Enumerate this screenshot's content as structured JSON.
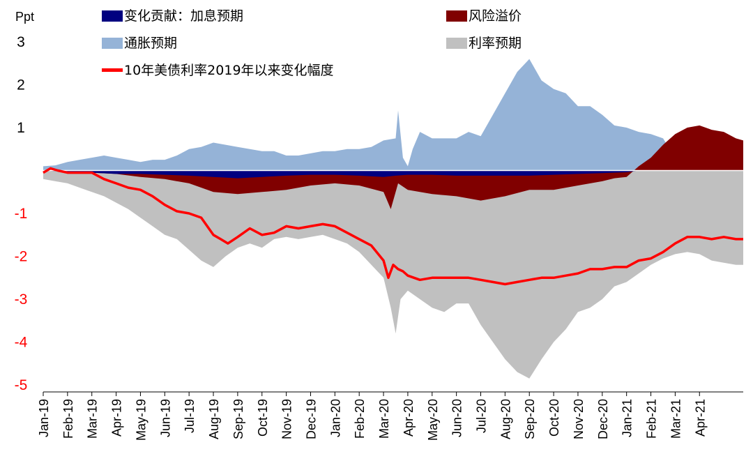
{
  "chart_data": {
    "type": "area",
    "unit_label": "Ppt",
    "ylim": [
      -5,
      3
    ],
    "y_ticks": [
      {
        "value": 3,
        "label": "3",
        "color": "#000000"
      },
      {
        "value": 2,
        "label": "2",
        "color": "#000000"
      },
      {
        "value": 1,
        "label": "1",
        "color": "#000000"
      },
      {
        "value": -1,
        "label": "-1",
        "color": "#ff0000"
      },
      {
        "value": -2,
        "label": "-2",
        "color": "#ff0000"
      },
      {
        "value": -3,
        "label": "-3",
        "color": "#ff0000"
      },
      {
        "value": -4,
        "label": "-4",
        "color": "#ff0000"
      },
      {
        "value": -5,
        "label": "-5",
        "color": "#ff0000"
      }
    ],
    "categories": [
      "Jan-19",
      "Feb-19",
      "Mar-19",
      "Apr-19",
      "May-19",
      "Jun-19",
      "Jul-19",
      "Aug-19",
      "Sep-19",
      "Oct-19",
      "Nov-19",
      "Dec-19",
      "Jan-20",
      "Feb-20",
      "Mar-20",
      "Apr-20",
      "May-20",
      "Jun-20",
      "Jul-20",
      "Aug-20",
      "Sep-20",
      "Oct-20",
      "Nov-20",
      "Dec-20",
      "Jan-21",
      "Feb-21",
      "Mar-21",
      "Apr-21"
    ],
    "x_end": 28.8,
    "legend": [
      {
        "key": "tp",
        "label": "变化贡献：加息预期",
        "color": "#000080",
        "marker": "box"
      },
      {
        "key": "rp",
        "label": "风险溢价",
        "color": "#800000",
        "marker": "box"
      },
      {
        "key": "inf",
        "label": "通胀预期",
        "color": "#95b3d7",
        "marker": "box"
      },
      {
        "key": "rate",
        "label": "利率预期",
        "color": "#c0c0c0",
        "marker": "box"
      },
      {
        "key": "yield",
        "label": "10年美债利率2019年以来变化幅度",
        "color": "#ff0000",
        "marker": "line"
      }
    ],
    "series": [
      {
        "key": "inf",
        "type": "area",
        "color": "#95b3d7",
        "x": [
          0,
          0.5,
          1,
          1.5,
          2,
          2.5,
          3,
          3.5,
          4,
          4.5,
          5,
          5.5,
          6,
          6.5,
          7,
          7.5,
          8,
          8.5,
          9,
          9.5,
          10,
          10.5,
          11,
          11.5,
          12,
          12.5,
          13,
          13.5,
          14,
          14.5,
          14.6,
          14.8,
          15,
          15.2,
          15.5,
          16,
          16.5,
          17,
          17.5,
          18,
          18.5,
          19,
          19.5,
          20,
          20.5,
          21,
          21.5,
          22,
          22.5,
          23,
          23.5,
          24,
          24.5,
          25,
          25.5,
          26,
          26.5,
          27,
          27.5,
          28,
          28.5,
          28.8
        ],
        "y": [
          0.1,
          0.12,
          0.2,
          0.25,
          0.3,
          0.35,
          0.3,
          0.25,
          0.2,
          0.25,
          0.25,
          0.35,
          0.5,
          0.55,
          0.65,
          0.6,
          0.55,
          0.5,
          0.45,
          0.45,
          0.35,
          0.35,
          0.4,
          0.45,
          0.45,
          0.5,
          0.5,
          0.55,
          0.7,
          0.75,
          1.4,
          0.3,
          0.1,
          0.5,
          0.9,
          0.75,
          0.75,
          0.75,
          0.9,
          0.8,
          1.3,
          1.8,
          2.3,
          2.6,
          2.1,
          1.9,
          1.8,
          1.5,
          1.5,
          1.3,
          1.05,
          1,
          0.9,
          0.85,
          0.75,
          0.3,
          0.05,
          0,
          0,
          0,
          0,
          0
        ]
      },
      {
        "key": "tp",
        "type": "area",
        "color": "#000080",
        "x": [
          0,
          1,
          2,
          3,
          4,
          5,
          6,
          7,
          8,
          9,
          10,
          11,
          12,
          13,
          14,
          14.5,
          15,
          16,
          17,
          18,
          19,
          20,
          21,
          22,
          23,
          24,
          24.5,
          25,
          26,
          27,
          28,
          28.8
        ],
        "y": [
          0,
          -0.03,
          -0.05,
          -0.08,
          -0.08,
          -0.1,
          -0.12,
          -0.15,
          -0.18,
          -0.15,
          -0.12,
          -0.1,
          -0.1,
          -0.12,
          -0.15,
          -0.12,
          -0.1,
          -0.1,
          -0.12,
          -0.12,
          -0.12,
          -0.12,
          -0.1,
          -0.08,
          -0.06,
          -0.04,
          0,
          0,
          0,
          0,
          0,
          0
        ]
      },
      {
        "key": "rp",
        "type": "area",
        "color": "#800000",
        "x": [
          0,
          1,
          2,
          3,
          4,
          5,
          6,
          7,
          8,
          9,
          10,
          11,
          12,
          13,
          14,
          14.3,
          14.6,
          15,
          16,
          17,
          18,
          19,
          20,
          21,
          22,
          23,
          23.5,
          24,
          24.5,
          25,
          25.5,
          26,
          26.5,
          27,
          27.5,
          28,
          28.5,
          28.8
        ],
        "y": [
          0,
          -0.03,
          -0.05,
          -0.08,
          -0.15,
          -0.2,
          -0.3,
          -0.5,
          -0.55,
          -0.5,
          -0.45,
          -0.35,
          -0.3,
          -0.35,
          -0.5,
          -0.9,
          -0.3,
          -0.45,
          -0.55,
          -0.6,
          -0.7,
          -0.6,
          -0.45,
          -0.45,
          -0.35,
          -0.25,
          -0.18,
          -0.15,
          0.1,
          0.3,
          0.6,
          0.85,
          1.0,
          1.05,
          0.95,
          0.9,
          0.75,
          0.7
        ]
      },
      {
        "key": "rate",
        "type": "area",
        "color": "#c0c0c0",
        "x": [
          0,
          0.5,
          1,
          1.5,
          2,
          2.5,
          3,
          3.5,
          4,
          4.5,
          5,
          5.5,
          6,
          6.5,
          7,
          7.5,
          8,
          8.5,
          9,
          9.5,
          10,
          10.5,
          11,
          11.5,
          12,
          12.5,
          13,
          13.5,
          14,
          14.3,
          14.5,
          14.7,
          15,
          15.5,
          16,
          16.5,
          17,
          17.5,
          18,
          18.5,
          19,
          19.5,
          20,
          20.5,
          21,
          21.5,
          22,
          22.5,
          23,
          23.5,
          24,
          24.5,
          25,
          25.5,
          26,
          26.5,
          27,
          27.5,
          28,
          28.5,
          28.8
        ],
        "y": [
          -0.2,
          -0.25,
          -0.3,
          -0.4,
          -0.5,
          -0.6,
          -0.75,
          -0.9,
          -1.1,
          -1.3,
          -1.5,
          -1.6,
          -1.85,
          -2.1,
          -2.25,
          -2.0,
          -1.8,
          -1.7,
          -1.8,
          -1.6,
          -1.55,
          -1.6,
          -1.55,
          -1.5,
          -1.6,
          -1.7,
          -1.9,
          -2.2,
          -2.5,
          -3.2,
          -3.8,
          -3.0,
          -2.8,
          -3.0,
          -3.2,
          -3.3,
          -3.1,
          -3.1,
          -3.6,
          -4.0,
          -4.4,
          -4.7,
          -4.85,
          -4.4,
          -4.0,
          -3.7,
          -3.3,
          -3.2,
          -3.0,
          -2.7,
          -2.6,
          -2.4,
          -2.2,
          -2.05,
          -1.95,
          -1.9,
          -1.95,
          -2.1,
          -2.15,
          -2.2,
          -2.2
        ]
      },
      {
        "key": "yield",
        "type": "line",
        "color": "#ff0000",
        "x": [
          0,
          0.3,
          0.6,
          1,
          1.5,
          2,
          2.5,
          3,
          3.5,
          4,
          4.5,
          5,
          5.5,
          6,
          6.5,
          7,
          7.3,
          7.6,
          8,
          8.5,
          9,
          9.5,
          10,
          10.5,
          11,
          11.5,
          12,
          12.5,
          13,
          13.5,
          14,
          14.2,
          14.4,
          14.6,
          14.8,
          15,
          15.5,
          16,
          16.5,
          17,
          17.5,
          18,
          18.5,
          19,
          19.5,
          20,
          20.5,
          21,
          21.5,
          22,
          22.5,
          23,
          23.5,
          24,
          24.5,
          25,
          25.5,
          26,
          26.5,
          27,
          27.5,
          28,
          28.5,
          28.8
        ],
        "y": [
          -0.05,
          0.05,
          0,
          -0.05,
          -0.05,
          -0.05,
          -0.2,
          -0.3,
          -0.4,
          -0.45,
          -0.6,
          -0.8,
          -0.95,
          -1.0,
          -1.1,
          -1.5,
          -1.6,
          -1.7,
          -1.55,
          -1.35,
          -1.5,
          -1.45,
          -1.3,
          -1.35,
          -1.3,
          -1.25,
          -1.3,
          -1.45,
          -1.6,
          -1.75,
          -2.1,
          -2.5,
          -2.2,
          -2.3,
          -2.35,
          -2.45,
          -2.55,
          -2.5,
          -2.5,
          -2.5,
          -2.5,
          -2.55,
          -2.6,
          -2.65,
          -2.6,
          -2.55,
          -2.5,
          -2.5,
          -2.45,
          -2.4,
          -2.3,
          -2.3,
          -2.25,
          -2.25,
          -2.1,
          -2.05,
          -1.9,
          -1.7,
          -1.55,
          -1.55,
          -1.6,
          -1.55,
          -1.6,
          -1.6
        ]
      }
    ]
  }
}
